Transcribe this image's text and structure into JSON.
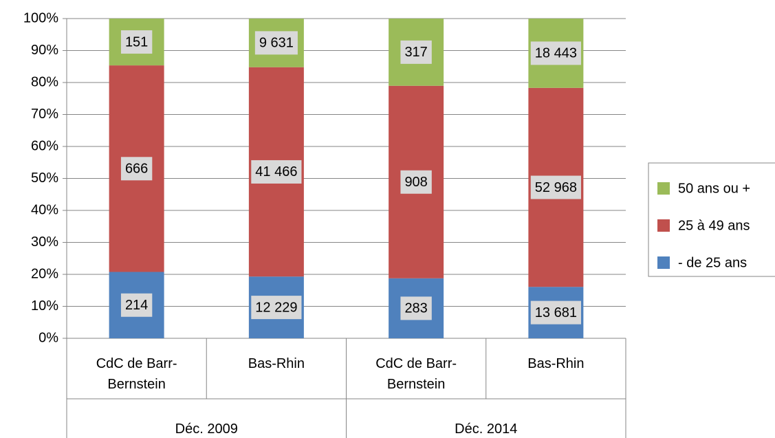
{
  "chart_data": {
    "type": "bar",
    "stacking": "percent",
    "categories": [
      "CdC de Barr-Bernstein",
      "Bas-Rhin",
      "CdC de Barr-Bernstein",
      "Bas-Rhin"
    ],
    "groups": [
      "Déc. 2009",
      "Déc. 2014"
    ],
    "series": [
      {
        "name": "- de 25 ans",
        "color": "#4f81bd",
        "values": [
          214,
          12229,
          283,
          13681
        ],
        "value_labels": [
          "214",
          "12 229",
          "283",
          "13 681"
        ]
      },
      {
        "name": "25 à 49 ans",
        "color": "#c0504d",
        "values": [
          666,
          41466,
          908,
          52968
        ],
        "value_labels": [
          "666",
          "41 466",
          "908",
          "52 968"
        ]
      },
      {
        "name": "50 ans ou +",
        "color": "#9bbb59",
        "values": [
          151,
          9631,
          317,
          18443
        ],
        "value_labels": [
          "151",
          "9 631",
          "317",
          "18 443"
        ]
      }
    ],
    "ylim": [
      0,
      100
    ],
    "yticks": [
      {
        "value": 0,
        "label": "0%"
      },
      {
        "value": 10,
        "label": "10%"
      },
      {
        "value": 20,
        "label": "20%"
      },
      {
        "value": 30,
        "label": "30%"
      },
      {
        "value": 40,
        "label": "40%"
      },
      {
        "value": 50,
        "label": "50%"
      },
      {
        "value": 60,
        "label": "60%"
      },
      {
        "value": 70,
        "label": "70%"
      },
      {
        "value": 80,
        "label": "80%"
      },
      {
        "value": 90,
        "label": "90%"
      },
      {
        "value": 100,
        "label": "100%"
      }
    ],
    "grid": true,
    "legend": "right"
  }
}
